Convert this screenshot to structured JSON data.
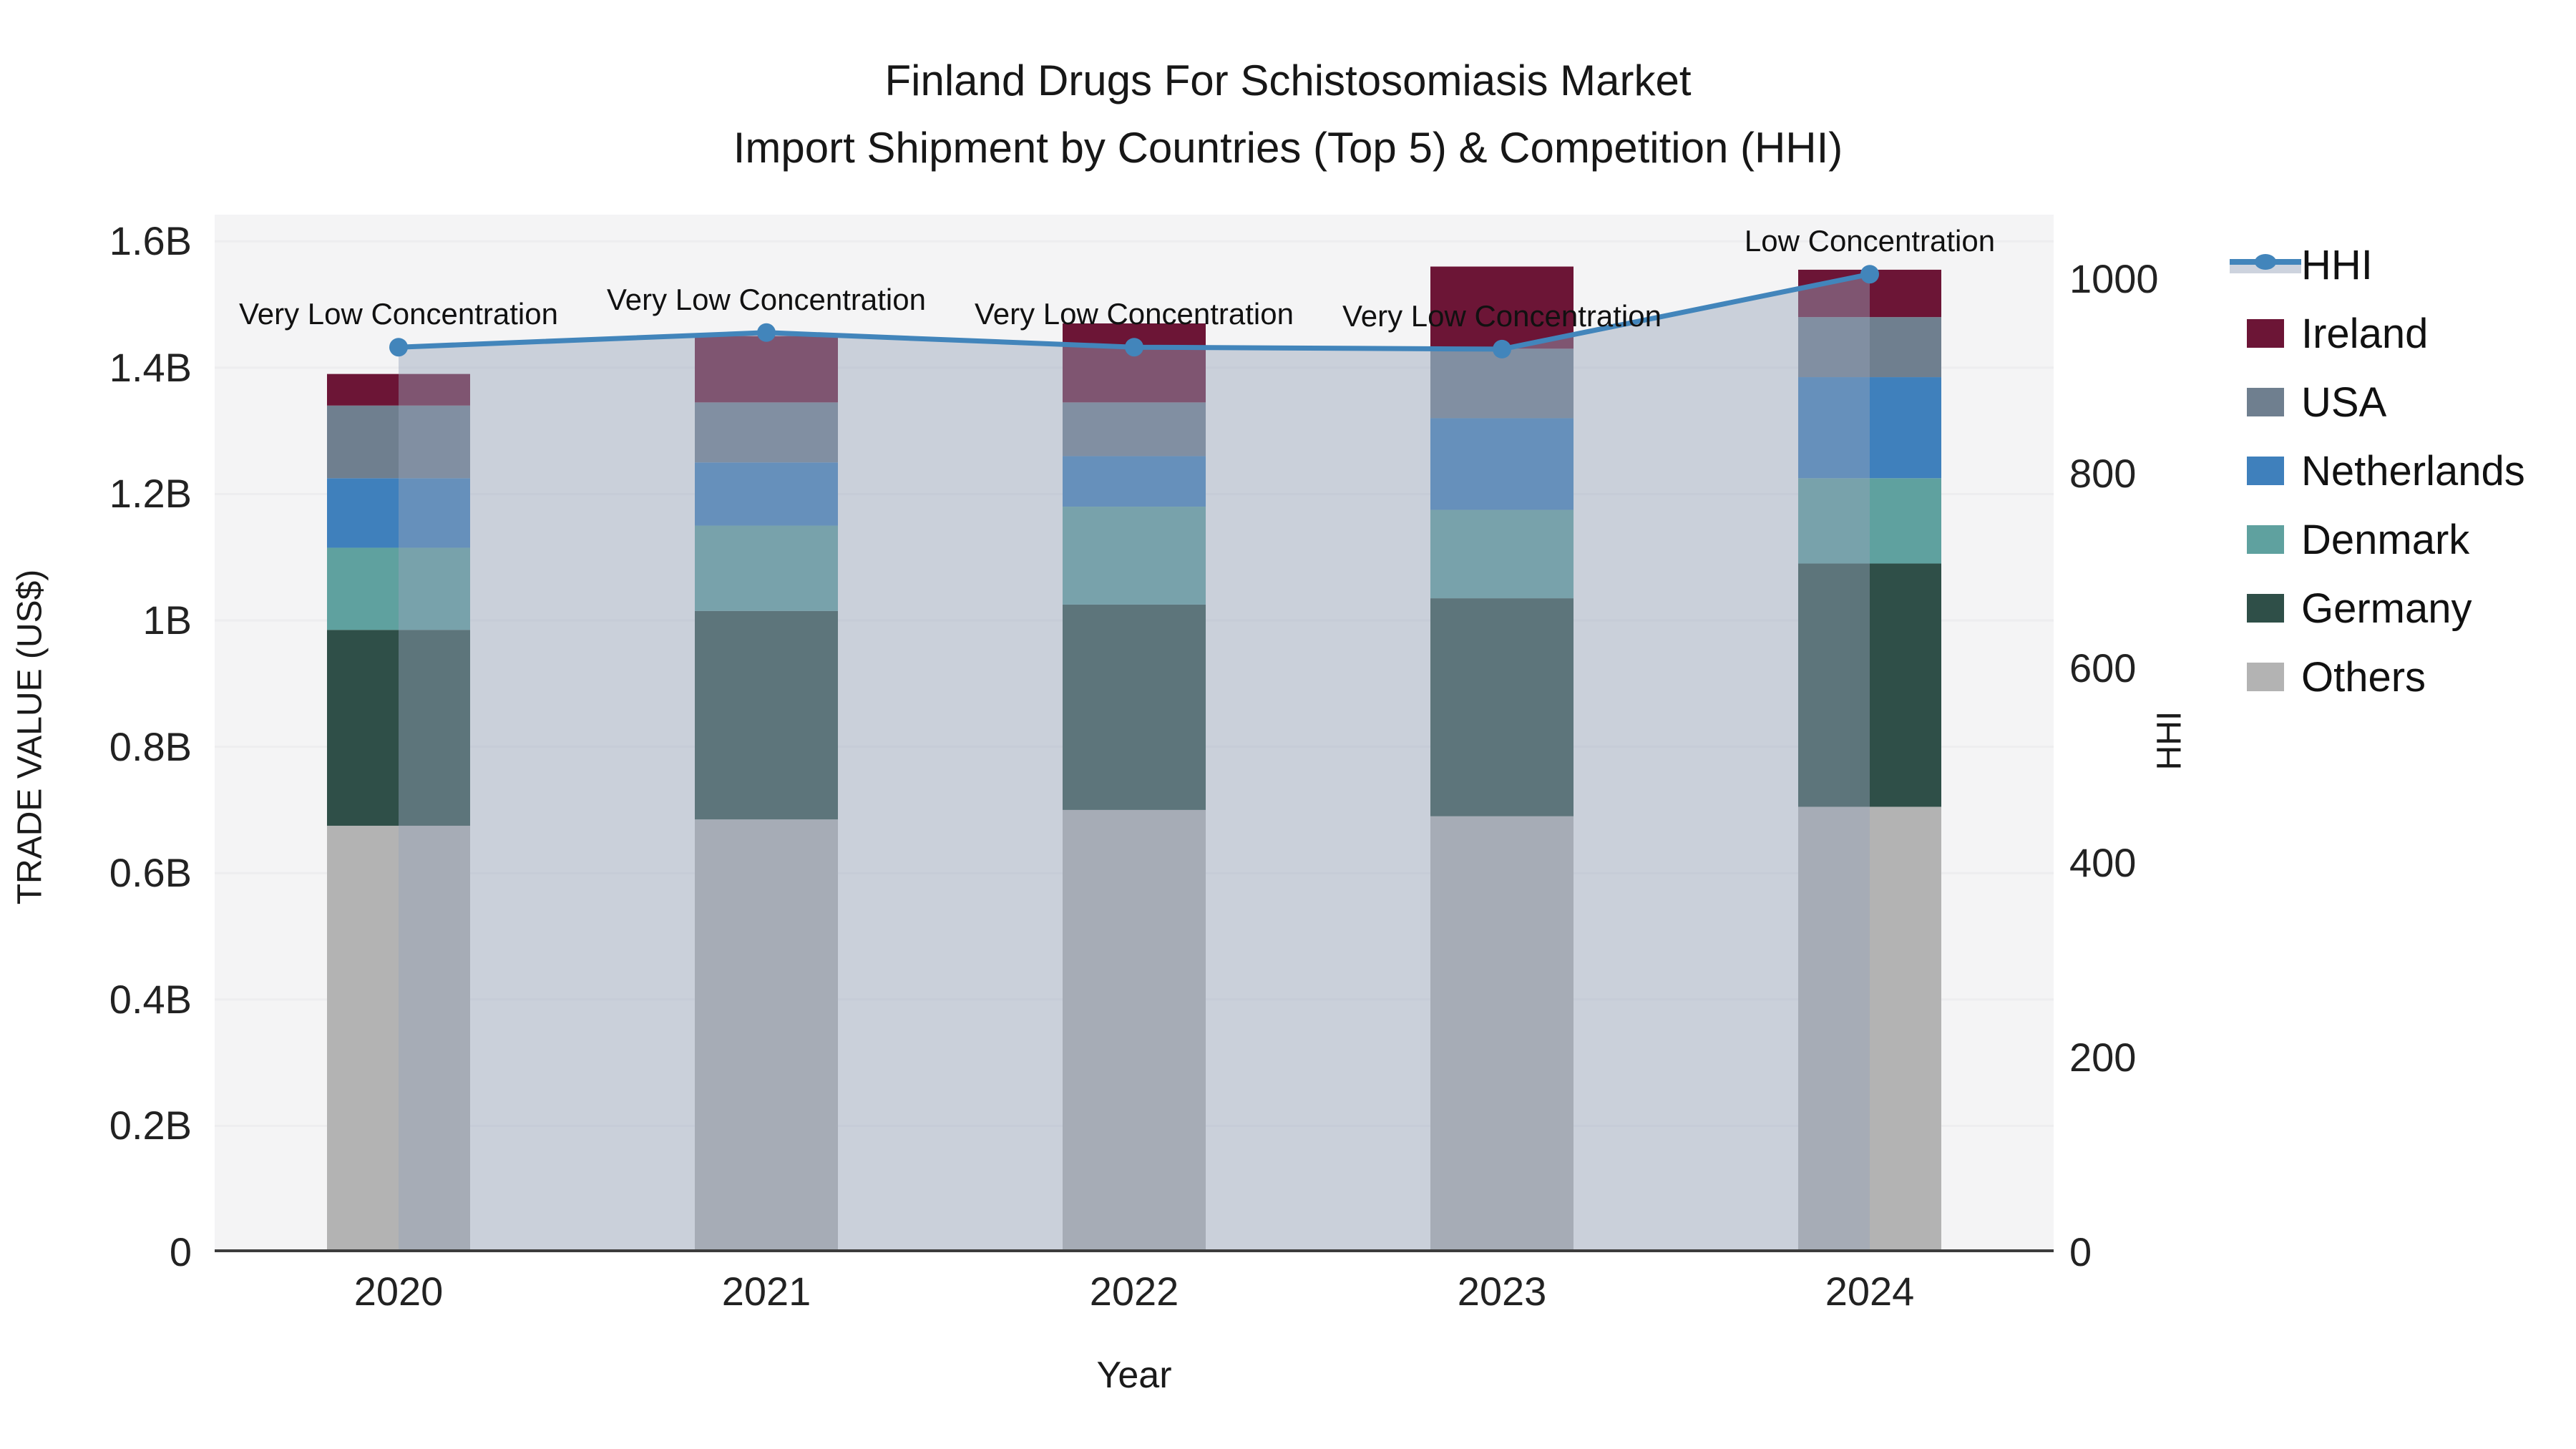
{
  "title": {
    "line1": "Finland Drugs For Schistosomiasis Market",
    "line2": "Import Shipment by Countries (Top 5) & Competition (HHI)"
  },
  "chart_data": {
    "type": "stacked-bar+line",
    "categories": [
      "2020",
      "2021",
      "2022",
      "2023",
      "2024"
    ],
    "axes": {
      "left": {
        "label": "TRADE VALUE (US$)",
        "unit": "billions US$",
        "range": [
          0,
          1.6
        ],
        "ticks": [
          {
            "label": "0",
            "value": 0
          },
          {
            "label": "0.2B",
            "value": 0.2
          },
          {
            "label": "0.4B",
            "value": 0.4
          },
          {
            "label": "0.6B",
            "value": 0.6
          },
          {
            "label": "0.8B",
            "value": 0.8
          },
          {
            "label": "1B",
            "value": 1.0
          },
          {
            "label": "1.2B",
            "value": 1.2
          },
          {
            "label": "1.4B",
            "value": 1.4
          },
          {
            "label": "1.6B",
            "value": 1.6
          }
        ]
      },
      "right": {
        "label": "HHI",
        "range": [
          0,
          1000
        ],
        "ticks": [
          {
            "label": "0",
            "value": 0
          },
          {
            "label": "200",
            "value": 200
          },
          {
            "label": "400",
            "value": 400
          },
          {
            "label": "600",
            "value": 600
          },
          {
            "label": "800",
            "value": 800
          },
          {
            "label": "1000",
            "value": 1000
          }
        ]
      },
      "x": {
        "label": "Year"
      }
    },
    "series": [
      {
        "name": "Others",
        "color": "#B3B3B3",
        "values": [
          0.675,
          0.685,
          0.7,
          0.69,
          0.705
        ]
      },
      {
        "name": "Germany",
        "color": "#2F4F48",
        "values": [
          0.31,
          0.33,
          0.325,
          0.345,
          0.385
        ]
      },
      {
        "name": "Denmark",
        "color": "#5FA19F",
        "values": [
          0.13,
          0.135,
          0.155,
          0.14,
          0.135
        ]
      },
      {
        "name": "Netherlands",
        "color": "#3F80BC",
        "values": [
          0.11,
          0.1,
          0.08,
          0.145,
          0.16
        ]
      },
      {
        "name": "USA",
        "color": "#6F7F8F",
        "values": [
          0.115,
          0.095,
          0.085,
          0.11,
          0.095
        ]
      },
      {
        "name": "Ireland",
        "color": "#6C1536",
        "values": [
          0.05,
          0.105,
          0.125,
          0.13,
          0.075
        ]
      }
    ],
    "totals": [
      1.39,
      1.45,
      1.47,
      1.56,
      1.555
    ],
    "line": {
      "name": "HHI",
      "values": [
        930,
        945,
        930,
        928,
        1005
      ],
      "color": "#4285BB",
      "area_fill": "rgba(150,163,186,0.45)"
    },
    "annotations": [
      "Very Low Concentration",
      "Very Low Concentration",
      "Very Low Concentration",
      "Very Low Concentration",
      "Low Concentration"
    ],
    "grid": {
      "on": true,
      "color": "#EDEDEF"
    },
    "legend_position": "right"
  },
  "legend": {
    "items": [
      {
        "label": "HHI",
        "type": "line",
        "color": "#4285BB",
        "band_color": "#CDD3DE"
      },
      {
        "label": "Ireland",
        "type": "box",
        "color": "#6C1536"
      },
      {
        "label": "USA",
        "type": "box",
        "color": "#6F7F8F"
      },
      {
        "label": "Netherlands",
        "type": "box",
        "color": "#3F80BC"
      },
      {
        "label": "Denmark",
        "type": "box",
        "color": "#5FA19F"
      },
      {
        "label": "Germany",
        "type": "box",
        "color": "#2F4F48"
      },
      {
        "label": "Others",
        "type": "box",
        "color": "#B3B3B3"
      }
    ]
  },
  "colors": {
    "plot_background": "#F4F4F5",
    "page_background": "#FFFFFF",
    "axis_line": "#3C3C3C",
    "text": "#1A1A1A"
  }
}
